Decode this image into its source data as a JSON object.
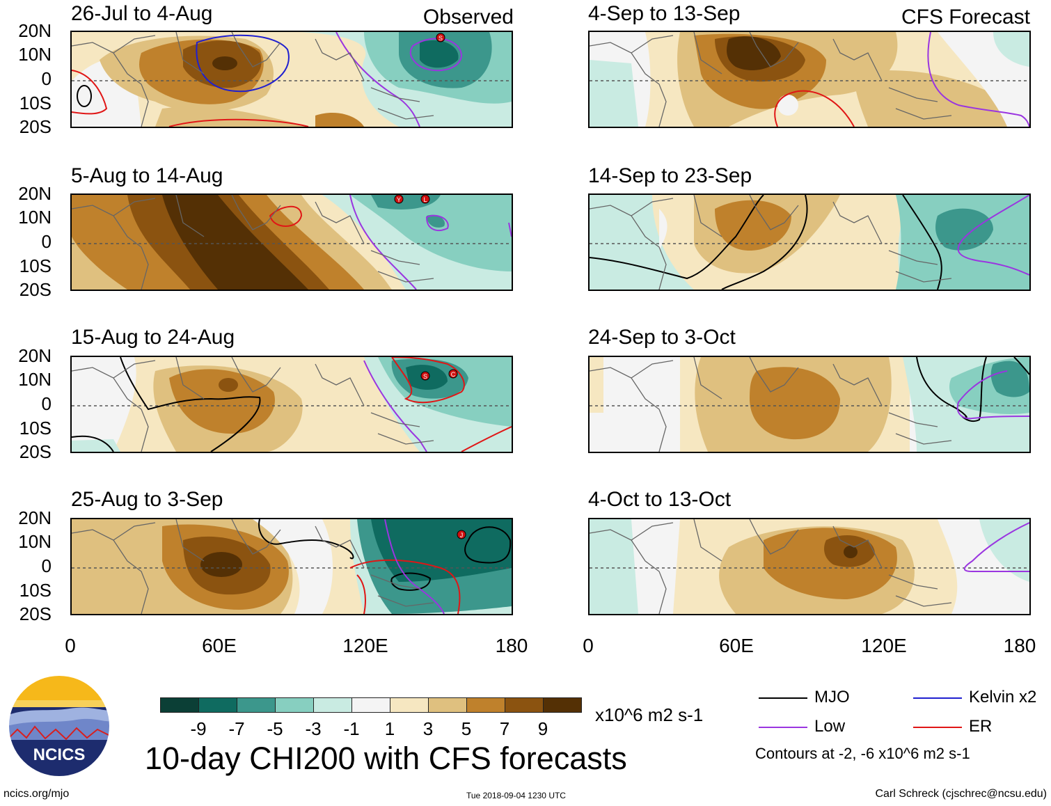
{
  "observed_tag": "Observed",
  "forecast_tag": "CFS Forecast",
  "panels": [
    {
      "title": "26-Jul to 4-Aug"
    },
    {
      "title": "5-Aug to 14-Aug"
    },
    {
      "title": "15-Aug to 24-Aug"
    },
    {
      "title": "25-Aug to 3-Sep"
    },
    {
      "title": "4-Sep to 13-Sep"
    },
    {
      "title": "14-Sep to 23-Sep"
    },
    {
      "title": "24-Sep to 3-Oct"
    },
    {
      "title": "4-Oct to 13-Oct"
    }
  ],
  "lat_labels": [
    "20N",
    "10N",
    "0",
    "10S",
    "20S"
  ],
  "lon_labels": [
    "0",
    "60E",
    "120E",
    "180"
  ],
  "colorbar": {
    "colors": [
      "#0b3f36",
      "#0f6b60",
      "#3c978c",
      "#87cfc0",
      "#c9ebe2",
      "#f4f4f4",
      "#f6e7c1",
      "#dfc07f",
      "#bf812c",
      "#8b5310",
      "#543005"
    ],
    "labels": [
      "-9",
      "-7",
      "-5",
      "-3",
      "-1",
      "1",
      "3",
      "5",
      "7",
      "9"
    ],
    "units": "x10^6 m2 s-1"
  },
  "main_title": "10-day CHI200 with CFS forecasts",
  "logo_text": "NCICS",
  "legend": {
    "mjo": {
      "label": "MJO",
      "color": "#000000"
    },
    "kelvin": {
      "label": "Kelvin x2",
      "color": "#1f1fd0"
    },
    "low": {
      "label": "Low",
      "color": "#9a35e0"
    },
    "er": {
      "label": "ER",
      "color": "#e01616"
    },
    "contours_note": "Contours at -2, -6 x10^6 m2 s-1"
  },
  "storm_markers": {
    "p0": [
      "S"
    ],
    "p1": [
      "Y",
      "L"
    ],
    "p2": [
      "S",
      "C"
    ],
    "p3": [
      "J"
    ]
  },
  "footer": {
    "website": "ncics.org/mjo",
    "timestamp": "Tue 2018-09-04 1230 UTC",
    "author": "Carl Schreck (cjschrec@ncsu.edu)"
  }
}
